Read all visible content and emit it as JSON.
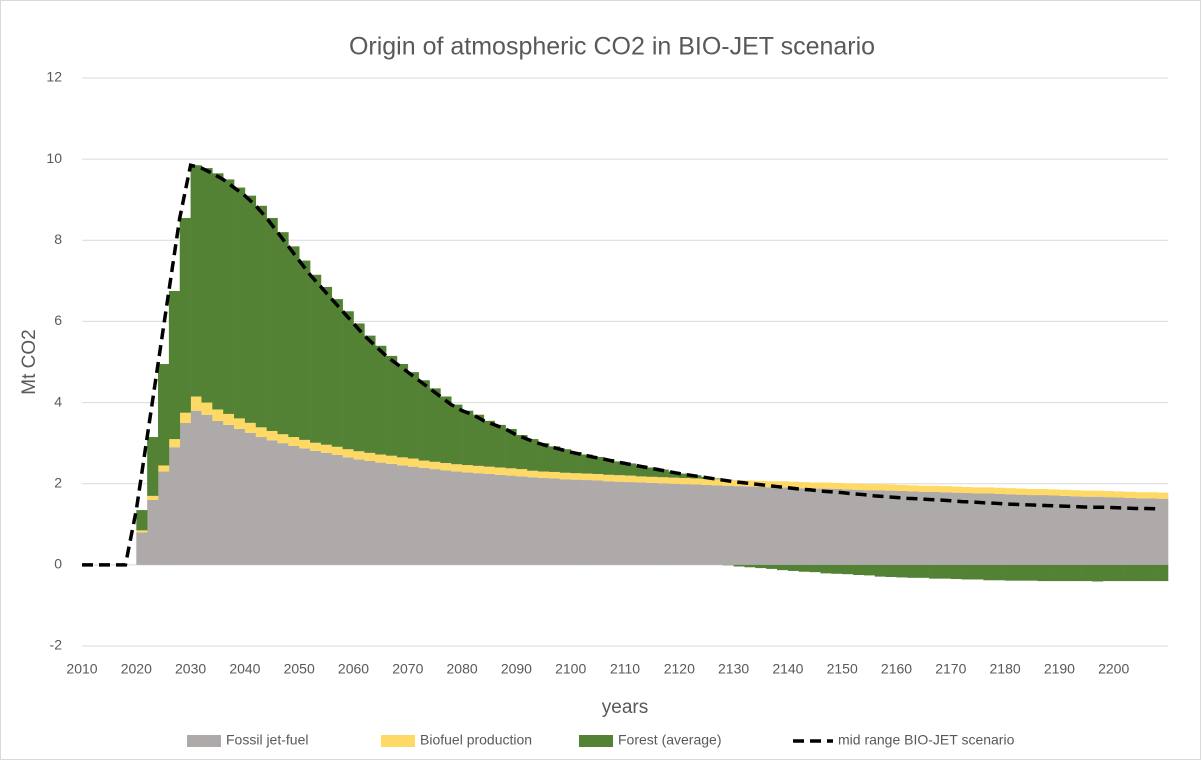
{
  "chart_data": {
    "type": "bar",
    "stacked": true,
    "title": "Origin of atmospheric CO2 in BIO-JET scenario",
    "x_label": "years",
    "y_label": "Mt CO2",
    "xlim": [
      2010,
      2210
    ],
    "xticks": [
      2010,
      2020,
      2030,
      2040,
      2050,
      2060,
      2070,
      2080,
      2090,
      2100,
      2110,
      2120,
      2130,
      2140,
      2150,
      2160,
      2170,
      2180,
      2190,
      2200
    ],
    "ylim": [
      -2,
      12
    ],
    "yticks": [
      -2,
      0,
      2,
      4,
      6,
      8,
      10,
      12
    ],
    "grid": true,
    "legend": "bottom",
    "x": [
      2010,
      2012,
      2014,
      2016,
      2018,
      2020,
      2022,
      2024,
      2026,
      2028,
      2030,
      2032,
      2034,
      2036,
      2038,
      2040,
      2042,
      2044,
      2046,
      2048,
      2050,
      2052,
      2054,
      2056,
      2058,
      2060,
      2062,
      2064,
      2066,
      2068,
      2070,
      2072,
      2074,
      2076,
      2078,
      2080,
      2082,
      2084,
      2086,
      2088,
      2090,
      2092,
      2094,
      2096,
      2098,
      2100,
      2102,
      2104,
      2106,
      2108,
      2110,
      2112,
      2114,
      2116,
      2118,
      2120,
      2122,
      2124,
      2126,
      2128,
      2130,
      2132,
      2134,
      2136,
      2138,
      2140,
      2142,
      2144,
      2146,
      2148,
      2150,
      2152,
      2154,
      2156,
      2158,
      2160,
      2162,
      2164,
      2166,
      2168,
      2170,
      2172,
      2174,
      2176,
      2178,
      2180,
      2182,
      2184,
      2186,
      2188,
      2190,
      2192,
      2194,
      2196,
      2198,
      2200,
      2202,
      2204,
      2206,
      2208
    ],
    "series": [
      {
        "name": "Fossil jet-fuel",
        "type": "bar",
        "color": "#aeaaaa",
        "values": [
          0,
          0,
          0,
          0,
          0,
          0.8,
          1.6,
          2.3,
          2.9,
          3.5,
          3.8,
          3.7,
          3.55,
          3.45,
          3.35,
          3.25,
          3.15,
          3.07,
          3.0,
          2.93,
          2.87,
          2.81,
          2.76,
          2.71,
          2.65,
          2.6,
          2.56,
          2.52,
          2.49,
          2.45,
          2.42,
          2.39,
          2.36,
          2.33,
          2.3,
          2.28,
          2.26,
          2.24,
          2.22,
          2.2,
          2.18,
          2.16,
          2.14,
          2.13,
          2.11,
          2.1,
          2.09,
          2.08,
          2.06,
          2.05,
          2.04,
          2.03,
          2.02,
          2.01,
          2.0,
          1.99,
          1.98,
          1.97,
          1.96,
          1.95,
          1.94,
          1.93,
          1.92,
          1.91,
          1.91,
          1.9,
          1.89,
          1.88,
          1.88,
          1.87,
          1.86,
          1.85,
          1.84,
          1.84,
          1.83,
          1.82,
          1.81,
          1.8,
          1.8,
          1.79,
          1.78,
          1.77,
          1.76,
          1.76,
          1.75,
          1.74,
          1.73,
          1.72,
          1.72,
          1.71,
          1.7,
          1.69,
          1.68,
          1.68,
          1.67,
          1.66,
          1.65,
          1.64,
          1.64,
          1.63
        ]
      },
      {
        "name": "Biofuel production",
        "type": "bar",
        "color": "#ffd966",
        "values": [
          0,
          0,
          0,
          0,
          0,
          0.05,
          0.1,
          0.15,
          0.2,
          0.25,
          0.35,
          0.3,
          0.28,
          0.27,
          0.26,
          0.25,
          0.24,
          0.23,
          0.22,
          0.22,
          0.21,
          0.2,
          0.2,
          0.2,
          0.2,
          0.2,
          0.2,
          0.2,
          0.2,
          0.2,
          0.2,
          0.18,
          0.18,
          0.18,
          0.18,
          0.18,
          0.18,
          0.18,
          0.18,
          0.18,
          0.18,
          0.16,
          0.16,
          0.16,
          0.16,
          0.16,
          0.16,
          0.16,
          0.16,
          0.16,
          0.16,
          0.15,
          0.15,
          0.15,
          0.15,
          0.15,
          0.15,
          0.15,
          0.15,
          0.15,
          0.15,
          0.15,
          0.15,
          0.15,
          0.15,
          0.15,
          0.15,
          0.15,
          0.15,
          0.15,
          0.15,
          0.15,
          0.15,
          0.15,
          0.15,
          0.15,
          0.15,
          0.15,
          0.15,
          0.15,
          0.15,
          0.15,
          0.15,
          0.15,
          0.15,
          0.15,
          0.15,
          0.15,
          0.15,
          0.15,
          0.15,
          0.15,
          0.15,
          0.15,
          0.15,
          0.15,
          0.15,
          0.15,
          0.15,
          0.15
        ]
      },
      {
        "name": "Forest (average)",
        "type": "bar",
        "color": "#548235",
        "values": [
          0,
          0,
          0,
          0,
          0,
          0.5,
          1.45,
          2.5,
          3.65,
          4.8,
          5.7,
          5.78,
          5.82,
          5.78,
          5.69,
          5.6,
          5.46,
          5.25,
          4.98,
          4.7,
          4.42,
          4.14,
          3.89,
          3.64,
          3.4,
          3.15,
          2.89,
          2.68,
          2.46,
          2.3,
          2.13,
          1.98,
          1.81,
          1.64,
          1.47,
          1.34,
          1.26,
          1.13,
          1.05,
          0.97,
          0.84,
          0.78,
          0.7,
          0.63,
          0.58,
          0.52,
          0.47,
          0.42,
          0.39,
          0.34,
          0.3,
          0.27,
          0.23,
          0.19,
          0.15,
          0.11,
          0.08,
          0.05,
          0.02,
          -0.01,
          -0.04,
          -0.06,
          -0.08,
          -0.1,
          -0.13,
          -0.15,
          -0.17,
          -0.18,
          -0.21,
          -0.22,
          -0.23,
          -0.25,
          -0.26,
          -0.29,
          -0.3,
          -0.31,
          -0.32,
          -0.32,
          -0.34,
          -0.34,
          -0.35,
          -0.36,
          -0.36,
          -0.38,
          -0.38,
          -0.39,
          -0.39,
          -0.39,
          -0.4,
          -0.4,
          -0.4,
          -0.4,
          -0.4,
          -0.41,
          -0.4,
          -0.4,
          -0.4,
          -0.4,
          -0.4,
          -0.4
        ]
      },
      {
        "name": "mid range BIO-JET scenario",
        "type": "line",
        "dashed": true,
        "color": "#000000",
        "values": [
          0,
          0,
          0,
          0,
          0,
          1.35,
          3.15,
          4.95,
          6.75,
          8.55,
          9.85,
          9.78,
          9.65,
          9.5,
          9.3,
          9.1,
          8.85,
          8.55,
          8.2,
          7.85,
          7.5,
          7.15,
          6.85,
          6.55,
          6.25,
          5.95,
          5.65,
          5.4,
          5.15,
          4.95,
          4.75,
          4.55,
          4.35,
          4.15,
          3.95,
          3.8,
          3.7,
          3.55,
          3.45,
          3.35,
          3.2,
          3.1,
          3.0,
          2.92,
          2.85,
          2.78,
          2.72,
          2.66,
          2.61,
          2.55,
          2.5,
          2.45,
          2.4,
          2.35,
          2.3,
          2.25,
          2.21,
          2.17,
          2.13,
          2.09,
          2.05,
          2.02,
          1.99,
          1.96,
          1.93,
          1.9,
          1.87,
          1.85,
          1.82,
          1.8,
          1.78,
          1.75,
          1.73,
          1.7,
          1.68,
          1.66,
          1.64,
          1.63,
          1.61,
          1.6,
          1.58,
          1.56,
          1.55,
          1.53,
          1.52,
          1.5,
          1.49,
          1.48,
          1.47,
          1.46,
          1.45,
          1.44,
          1.43,
          1.42,
          1.42,
          1.41,
          1.4,
          1.39,
          1.39,
          1.38
        ]
      }
    ]
  }
}
